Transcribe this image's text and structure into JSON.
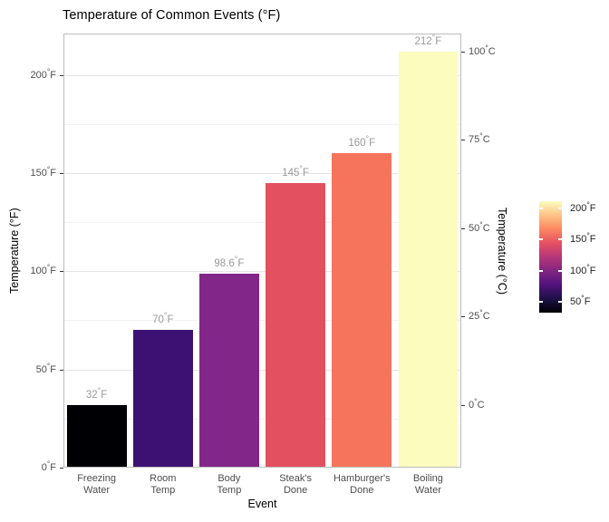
{
  "chart_data": {
    "type": "bar",
    "title": "Temperature of Common Events (°F)",
    "xlabel": "Event",
    "ylabel_left": "Temperature (°F)",
    "ylabel_right": "Temperature (°C)",
    "categories": [
      "Freezing\nWater",
      "Room\nTemp",
      "Body\nTemp",
      "Steak's\nDone",
      "Hamburger's\nDone",
      "Boiling\nWater"
    ],
    "values": [
      32,
      70,
      98.6,
      145,
      160,
      212
    ],
    "bar_labels": [
      "32°F",
      "70°F",
      "98.6°F",
      "145°F",
      "160°F",
      "212°F"
    ],
    "bar_colors": [
      "#000004",
      "#3D1173",
      "#832689",
      "#E35161",
      "#F6745C",
      "#FBFCBE"
    ],
    "ylim": [
      0,
      221
    ],
    "grid": true,
    "y_left_ticks": {
      "labels": [
        "0°F",
        "50°F",
        "100°F",
        "150°F",
        "200°F"
      ],
      "values": [
        0,
        50,
        100,
        150,
        200
      ]
    },
    "y_right_ticks": {
      "labels": [
        "0°C",
        "25°C",
        "50°C",
        "75°C",
        "100°C"
      ],
      "values_c": [
        0,
        25,
        50,
        75,
        100
      ]
    },
    "minor_grid_step_f": 25,
    "legend": {
      "position": "right",
      "labels": [
        "50°F",
        "100°F",
        "150°F",
        "200°F"
      ],
      "values": [
        50,
        100,
        150,
        200
      ],
      "range_f": [
        32,
        212
      ],
      "gradient": [
        "#000004",
        "#1D1147",
        "#51127C",
        "#822681",
        "#B63679",
        "#E65164",
        "#FB8861",
        "#FEC287",
        "#FCFDBF"
      ]
    }
  }
}
